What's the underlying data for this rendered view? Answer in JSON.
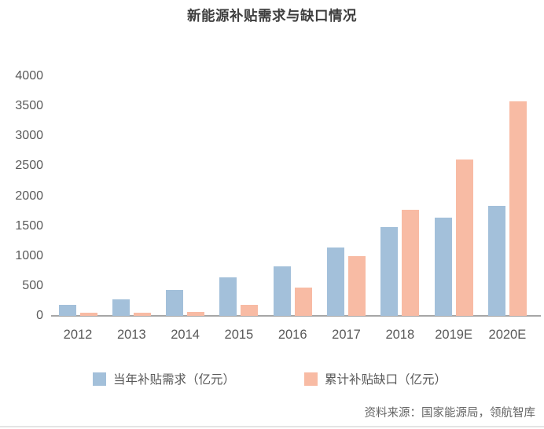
{
  "title": "新能源补贴需求与缺口情况",
  "source_note": "资料来源：国家能源局，领航智库",
  "colors": {
    "series_demand": "#a3c0da",
    "series_gap": "#f8bba4",
    "axis_line": "#a6a6a6",
    "axis_text": "#595959",
    "title_text": "#3e3e3e",
    "source_text": "#666666"
  },
  "chart_data": {
    "type": "bar",
    "title": "新能源补贴需求与缺口情况",
    "categories": [
      "2012",
      "2013",
      "2014",
      "2015",
      "2016",
      "2017",
      "2018",
      "2019E",
      "2020E"
    ],
    "series": [
      {
        "key": "annual-subsidy-demand",
        "name": "当年补贴需求（亿元）",
        "color": "#a3c0da",
        "values": [
          180,
          270,
          435,
          640,
          820,
          1140,
          1480,
          1645,
          1830
        ]
      },
      {
        "key": "cumulative-subsidy-gap",
        "name": "累计补贴缺口（亿元）",
        "color": "#f8bba4",
        "values": [
          50,
          55,
          60,
          180,
          470,
          1000,
          1775,
          2605,
          3580
        ]
      }
    ],
    "ylim": [
      0,
      4000
    ],
    "ytick_step": 500,
    "xlabel": "",
    "ylabel": "",
    "grid": false,
    "legend_position": "bottom",
    "source": "资料来源：国家能源局，领航智库"
  }
}
